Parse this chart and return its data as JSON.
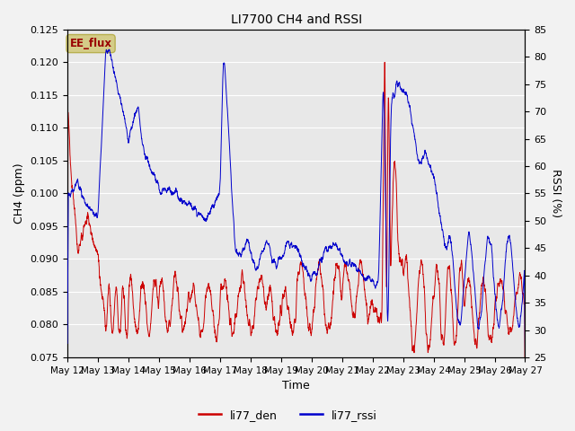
{
  "title": "LI7700 CH4 and RSSI",
  "xlabel": "Time",
  "ylabel_left": "CH4 (ppm)",
  "ylabel_right": "RSSI (%)",
  "ylim_left": [
    0.075,
    0.125
  ],
  "ylim_right": [
    25,
    85
  ],
  "yticks_left": [
    0.075,
    0.08,
    0.085,
    0.09,
    0.095,
    0.1,
    0.105,
    0.11,
    0.115,
    0.12,
    0.125
  ],
  "yticks_right": [
    25,
    30,
    35,
    40,
    45,
    50,
    55,
    60,
    65,
    70,
    75,
    80,
    85
  ],
  "color_ch4": "#cc0000",
  "color_rssi": "#0000cc",
  "plot_bg": "#e8e8e8",
  "fig_bg": "#f2f2f2",
  "annotation_text": "EE_flux",
  "annotation_fg": "#990000",
  "annotation_bg": "#d4cc88",
  "annotation_border": "#b8b050",
  "legend_entries": [
    "li77_den",
    "li77_rssi"
  ],
  "x_tick_labels": [
    "May 12",
    "May 13",
    "May 14",
    "May 15",
    "May 16",
    "May 17",
    "May 18",
    "May 19",
    "May 20",
    "May 21",
    "May 22",
    "May 23",
    "May 24",
    "May 25",
    "May 26",
    "May 27"
  ],
  "figsize": [
    6.4,
    4.8
  ],
  "dpi": 100
}
